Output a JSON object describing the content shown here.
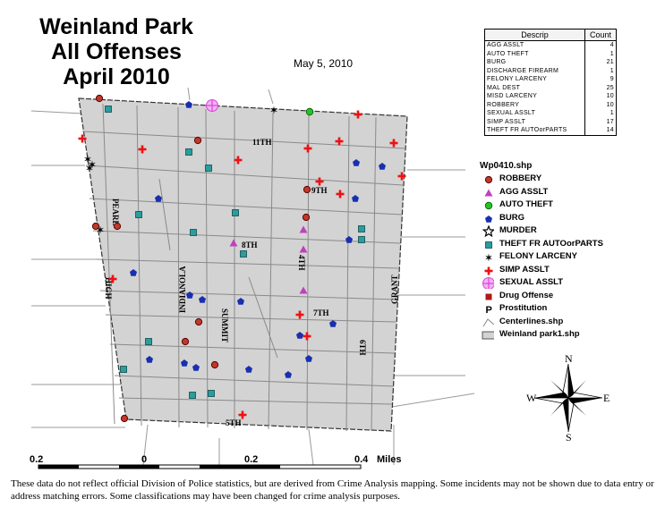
{
  "title_lines": [
    "Weinland Park",
    "All Offenses",
    "April 2010"
  ],
  "date": "May 5, 2010",
  "table": {
    "headers": [
      "Descrip",
      "Count"
    ],
    "rows": [
      [
        "AGG ASSLT",
        "4"
      ],
      [
        "AUTO THEFT",
        "1"
      ],
      [
        "BURG",
        "21"
      ],
      [
        "DISCHARGE FIREARM",
        "1"
      ],
      [
        "FELONY LARCENY",
        "9"
      ],
      [
        "MAL DEST",
        "25"
      ],
      [
        "MISD LARCENY",
        "10"
      ],
      [
        "ROBBERY",
        "10"
      ],
      [
        "SEXUAL ASSLT",
        "1"
      ],
      [
        "SIMP ASSLT",
        "17"
      ],
      [
        "THEFT FR AUTOorPARTS",
        "14"
      ]
    ]
  },
  "legend": {
    "title": "Wp0410.shp",
    "items": [
      {
        "label": "ROBBERY",
        "symbol": "robbery",
        "color": "#c0392b"
      },
      {
        "label": "AGG ASSLT",
        "symbol": "agg",
        "color": "#c040c0"
      },
      {
        "label": "AUTO THEFT",
        "symbol": "auto",
        "color": "#22c422"
      },
      {
        "label": "BURG",
        "symbol": "burg",
        "color": "#1a2fb0"
      },
      {
        "label": "MURDER",
        "symbol": "murder",
        "color": "#000000"
      },
      {
        "label": "THEFT FR AUTOorPARTS",
        "symbol": "theft",
        "color": "#2a9d9d"
      },
      {
        "label": "FELONY LARCENY",
        "symbol": "felony",
        "color": "#000000"
      },
      {
        "label": "SIMP ASSLT",
        "symbol": "simp",
        "color": "#ee1111"
      },
      {
        "label": "SEXUAL ASSLT",
        "symbol": "sexual",
        "color": "#dd44dd"
      },
      {
        "label": "Drug Offense",
        "symbol": "drug",
        "color": "#b01818"
      },
      {
        "label": "Prostitution",
        "symbol": "prost",
        "color": "#000000"
      },
      {
        "label": "Centerlines.shp",
        "symbol": "centerline",
        "color": "#888888"
      },
      {
        "label": "Weinland park1.shp",
        "symbol": "park",
        "color": "#d3d3d3"
      }
    ]
  },
  "streets": [
    "11TH",
    "9TH",
    "PEARL",
    "8TH",
    "4TH",
    "INDIANOLA",
    "SUMMIT",
    "HIGH",
    "7TH",
    "GRANT",
    "6TH",
    "5TH"
  ],
  "scale": {
    "labels": [
      "0.2",
      "0",
      "0.2",
      "0.4"
    ],
    "unit": "Miles"
  },
  "compass": {
    "n": "N",
    "s": "S",
    "e": "E",
    "w": "W"
  },
  "disclaimer": "These data do not reflect official Division of Police statistics, but are derived from Crime Analysis mapping. Some incidents may not be shown due to data entry or address matching errors. Some classifications may have been changed for crime analysis purposes.",
  "colors": {
    "park_fill": "#d3d3d3",
    "street_line": "#8a8a8a",
    "outside_line": "#9a9a9a"
  }
}
